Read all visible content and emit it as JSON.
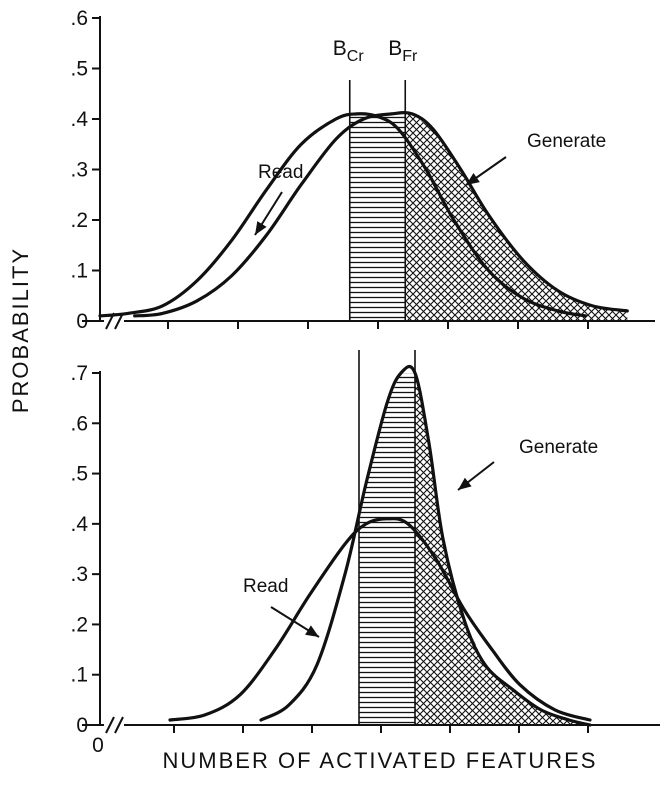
{
  "chart_data": {
    "type": "line",
    "ylabel": "PROBABILITY",
    "xlabel": "NUMBER OF ACTIVATED FEATURES",
    "x_origin_label": "0",
    "panels": [
      {
        "id": "top",
        "ylim": [
          0,
          0.6
        ],
        "yticks": [
          {
            "v": 0,
            "label": "0"
          },
          {
            "v": 0.1,
            "label": ".1"
          },
          {
            "v": 0.2,
            "label": ".2"
          },
          {
            "v": 0.3,
            "label": ".3"
          },
          {
            "v": 0.4,
            "label": ".4"
          },
          {
            "v": 0.5,
            "label": ".5"
          },
          {
            "v": 0.6,
            "label": ".6"
          }
        ],
        "boundaries": [
          {
            "name": "B_Cr",
            "main": "B",
            "sub": "Cr",
            "x": 3.6
          },
          {
            "name": "B_Fr",
            "main": "B",
            "sub": "Fr",
            "x": 4.4
          }
        ],
        "series": [
          {
            "name": "Read",
            "label": "Read",
            "x": [
              0,
              0.4,
              0.9,
              1.4,
              1.9,
              2.4,
              2.9,
              3.4,
              3.7,
              4.0,
              4.3,
              4.7,
              5.1,
              5.6,
              6.1,
              6.6,
              7.0
            ],
            "y": [
              0.01,
              0.015,
              0.03,
              0.08,
              0.16,
              0.26,
              0.35,
              0.4,
              0.41,
              0.405,
              0.38,
              0.3,
              0.2,
              0.1,
              0.045,
              0.02,
              0.01
            ]
          },
          {
            "name": "Generate",
            "label": "Generate",
            "x": [
              0.5,
              0.9,
              1.4,
              1.9,
              2.4,
              2.9,
              3.4,
              3.8,
              4.2,
              4.5,
              4.8,
              5.2,
              5.6,
              6.1,
              6.6,
              7.1,
              7.6
            ],
            "y": [
              0.01,
              0.015,
              0.04,
              0.09,
              0.17,
              0.27,
              0.36,
              0.4,
              0.41,
              0.41,
              0.38,
              0.3,
              0.21,
              0.12,
              0.06,
              0.03,
              0.02
            ]
          }
        ]
      },
      {
        "id": "bottom",
        "ylim": [
          0,
          0.7
        ],
        "yticks": [
          {
            "v": 0,
            "label": "0"
          },
          {
            "v": 0.1,
            "label": ".1"
          },
          {
            "v": 0.2,
            "label": ".2"
          },
          {
            "v": 0.3,
            "label": ".3"
          },
          {
            "v": 0.4,
            "label": ".4"
          },
          {
            "v": 0.5,
            "label": ".5"
          },
          {
            "v": 0.6,
            "label": ".6"
          },
          {
            "v": 0.7,
            "label": ".7"
          }
        ],
        "boundaries": [
          {
            "name": "B_Cr",
            "x": 3.7
          },
          {
            "name": "B_Fr",
            "x": 4.5
          }
        ],
        "series": [
          {
            "name": "Read",
            "label": "Read",
            "x": [
              1.0,
              1.5,
              2.0,
              2.5,
              3.0,
              3.5,
              3.8,
              4.1,
              4.4,
              4.8,
              5.2,
              5.6,
              6.0,
              6.5,
              7.0
            ],
            "y": [
              0.01,
              0.02,
              0.06,
              0.15,
              0.26,
              0.36,
              0.4,
              0.41,
              0.4,
              0.33,
              0.23,
              0.15,
              0.08,
              0.03,
              0.01
            ]
          },
          {
            "name": "Generate",
            "label": "Generate",
            "x": [
              2.3,
              2.7,
              3.1,
              3.5,
              3.8,
              4.1,
              4.3,
              4.5,
              4.7,
              4.9,
              5.2,
              5.5,
              5.9,
              6.3,
              6.7,
              7.0
            ],
            "y": [
              0.01,
              0.04,
              0.12,
              0.3,
              0.48,
              0.64,
              0.7,
              0.7,
              0.56,
              0.37,
              0.21,
              0.12,
              0.07,
              0.03,
              0.01,
              0.0
            ]
          }
        ]
      }
    ]
  }
}
